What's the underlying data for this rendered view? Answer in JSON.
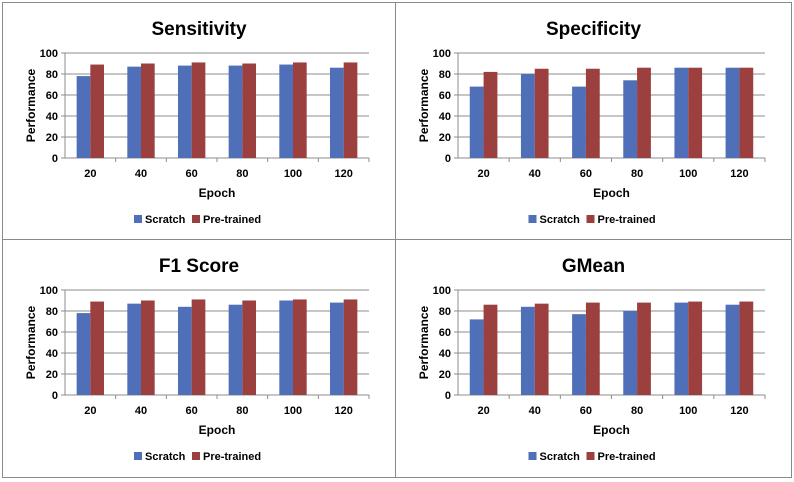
{
  "colors": {
    "scratch": "#4F6FB8",
    "pretrained": "#9B3F3F",
    "grid": "#8c8c8c",
    "axis": "#8c8c8c"
  },
  "chart_data": [
    {
      "type": "bar",
      "title": "Sensitivity",
      "xlabel": "Epoch",
      "ylabel": "Performance",
      "ylim": [
        0,
        100
      ],
      "yticks": [
        0,
        20,
        40,
        60,
        80,
        100
      ],
      "categories": [
        "20",
        "40",
        "60",
        "80",
        "100",
        "120"
      ],
      "series": [
        {
          "name": "Scratch",
          "values": [
            78,
            87,
            88,
            88,
            89,
            86
          ]
        },
        {
          "name": "Pre-trained",
          "values": [
            89,
            90,
            91,
            90,
            91,
            91
          ]
        }
      ],
      "legend": "bottom"
    },
    {
      "type": "bar",
      "title": "Specificity",
      "xlabel": "Epoch",
      "ylabel": "Performance",
      "ylim": [
        0,
        100
      ],
      "yticks": [
        0,
        20,
        40,
        60,
        80,
        100
      ],
      "categories": [
        "20",
        "40",
        "60",
        "80",
        "100",
        "120"
      ],
      "series": [
        {
          "name": "Scratch",
          "values": [
            68,
            80,
            68,
            74,
            86,
            86
          ]
        },
        {
          "name": "Pre-trained",
          "values": [
            82,
            85,
            85,
            86,
            86,
            86
          ]
        }
      ],
      "legend": "bottom"
    },
    {
      "type": "bar",
      "title": "F1 Score",
      "xlabel": "Epoch",
      "ylabel": "Performance",
      "ylim": [
        0,
        100
      ],
      "yticks": [
        0,
        20,
        40,
        60,
        80,
        100
      ],
      "categories": [
        "20",
        "40",
        "60",
        "80",
        "100",
        "120"
      ],
      "series": [
        {
          "name": "Scratch",
          "values": [
            78,
            87,
            84,
            86,
            90,
            88
          ]
        },
        {
          "name": "Pre-trained",
          "values": [
            89,
            90,
            91,
            90,
            91,
            91
          ]
        }
      ],
      "legend": "bottom"
    },
    {
      "type": "bar",
      "title": "GMean",
      "xlabel": "Epoch",
      "ylabel": "Performance",
      "ylim": [
        0,
        100
      ],
      "yticks": [
        0,
        20,
        40,
        60,
        80,
        100
      ],
      "categories": [
        "20",
        "40",
        "60",
        "80",
        "100",
        "120"
      ],
      "series": [
        {
          "name": "Scratch",
          "values": [
            72,
            84,
            77,
            80,
            88,
            86
          ]
        },
        {
          "name": "Pre-trained",
          "values": [
            86,
            87,
            88,
            88,
            89,
            89
          ]
        }
      ],
      "legend": "bottom"
    }
  ]
}
